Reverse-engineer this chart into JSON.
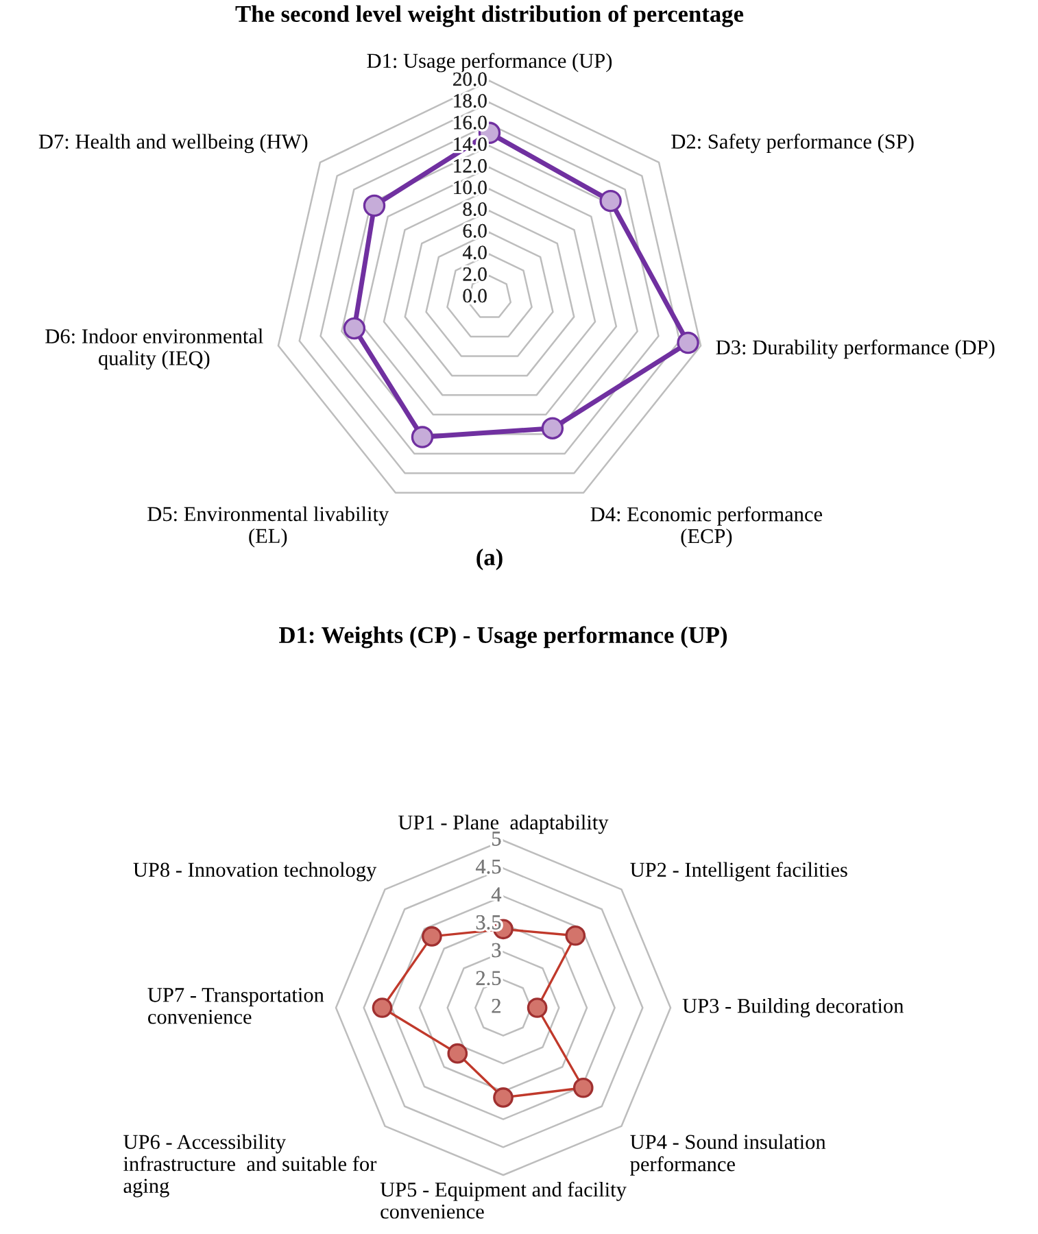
{
  "chart_data": [
    {
      "type": "radar",
      "title": "The second level weight distribution of percentage",
      "annotations": [
        "(a)"
      ],
      "categories": [
        "D1: Usage performance (UP)",
        "D2: Safety performance (SP)",
        "D3: Durability performance (DP)",
        "D4: Economic performance\n(ECP)",
        "D5: Environmental livability\n(EL)",
        "D6: Indoor environmental\nquality (IEQ)",
        "D7: Health and wellbeing (HW)"
      ],
      "series": [
        {
          "color": "#7030a0",
          "values": [
            15.2,
            14.3,
            18.8,
            13.4,
            14.3,
            12.8,
            13.6
          ]
        }
      ],
      "ylim": [
        0,
        20
      ],
      "yticks": [
        {
          "value": 0,
          "label": "0.0"
        },
        {
          "value": 2,
          "label": "2.0"
        },
        {
          "value": 4,
          "label": "4.0"
        },
        {
          "value": 6,
          "label": "6.0"
        },
        {
          "value": 8,
          "label": "8.0"
        },
        {
          "value": 10,
          "label": "10.0"
        },
        {
          "value": 12,
          "label": "12.0"
        },
        {
          "value": 14,
          "label": "14.0"
        },
        {
          "value": 16,
          "label": "16.0"
        },
        {
          "value": 18,
          "label": "18.0"
        },
        {
          "value": 20,
          "label": "20.0"
        }
      ],
      "grid": true,
      "marker": "circle"
    },
    {
      "type": "radar",
      "title": "D1: Weights (CP) - Usage performance (UP)",
      "categories": [
        "UP1 - Plane  adaptability",
        "UP2 - Intelligent facilities",
        "UP3 - Building decoration",
        "UP4 - Sound insulation\nperformance",
        "UP5 - Equipment and facility\nconvenience",
        "UP6 - Accessibility\ninfrastructure  and suitable for\naging",
        "UP7 - Transportation\nconvenience",
        "UP8 - Innovation technology"
      ],
      "series": [
        {
          "color": "#c0392b",
          "values": [
            3.41,
            3.83,
            2.61,
            4.03,
            3.61,
            3.16,
            4.17,
            3.81
          ]
        }
      ],
      "ylim": [
        2,
        5
      ],
      "yticks": [
        2,
        2.5,
        3,
        3.5,
        4,
        4.5,
        5
      ],
      "grid": true,
      "marker": "circle"
    }
  ]
}
